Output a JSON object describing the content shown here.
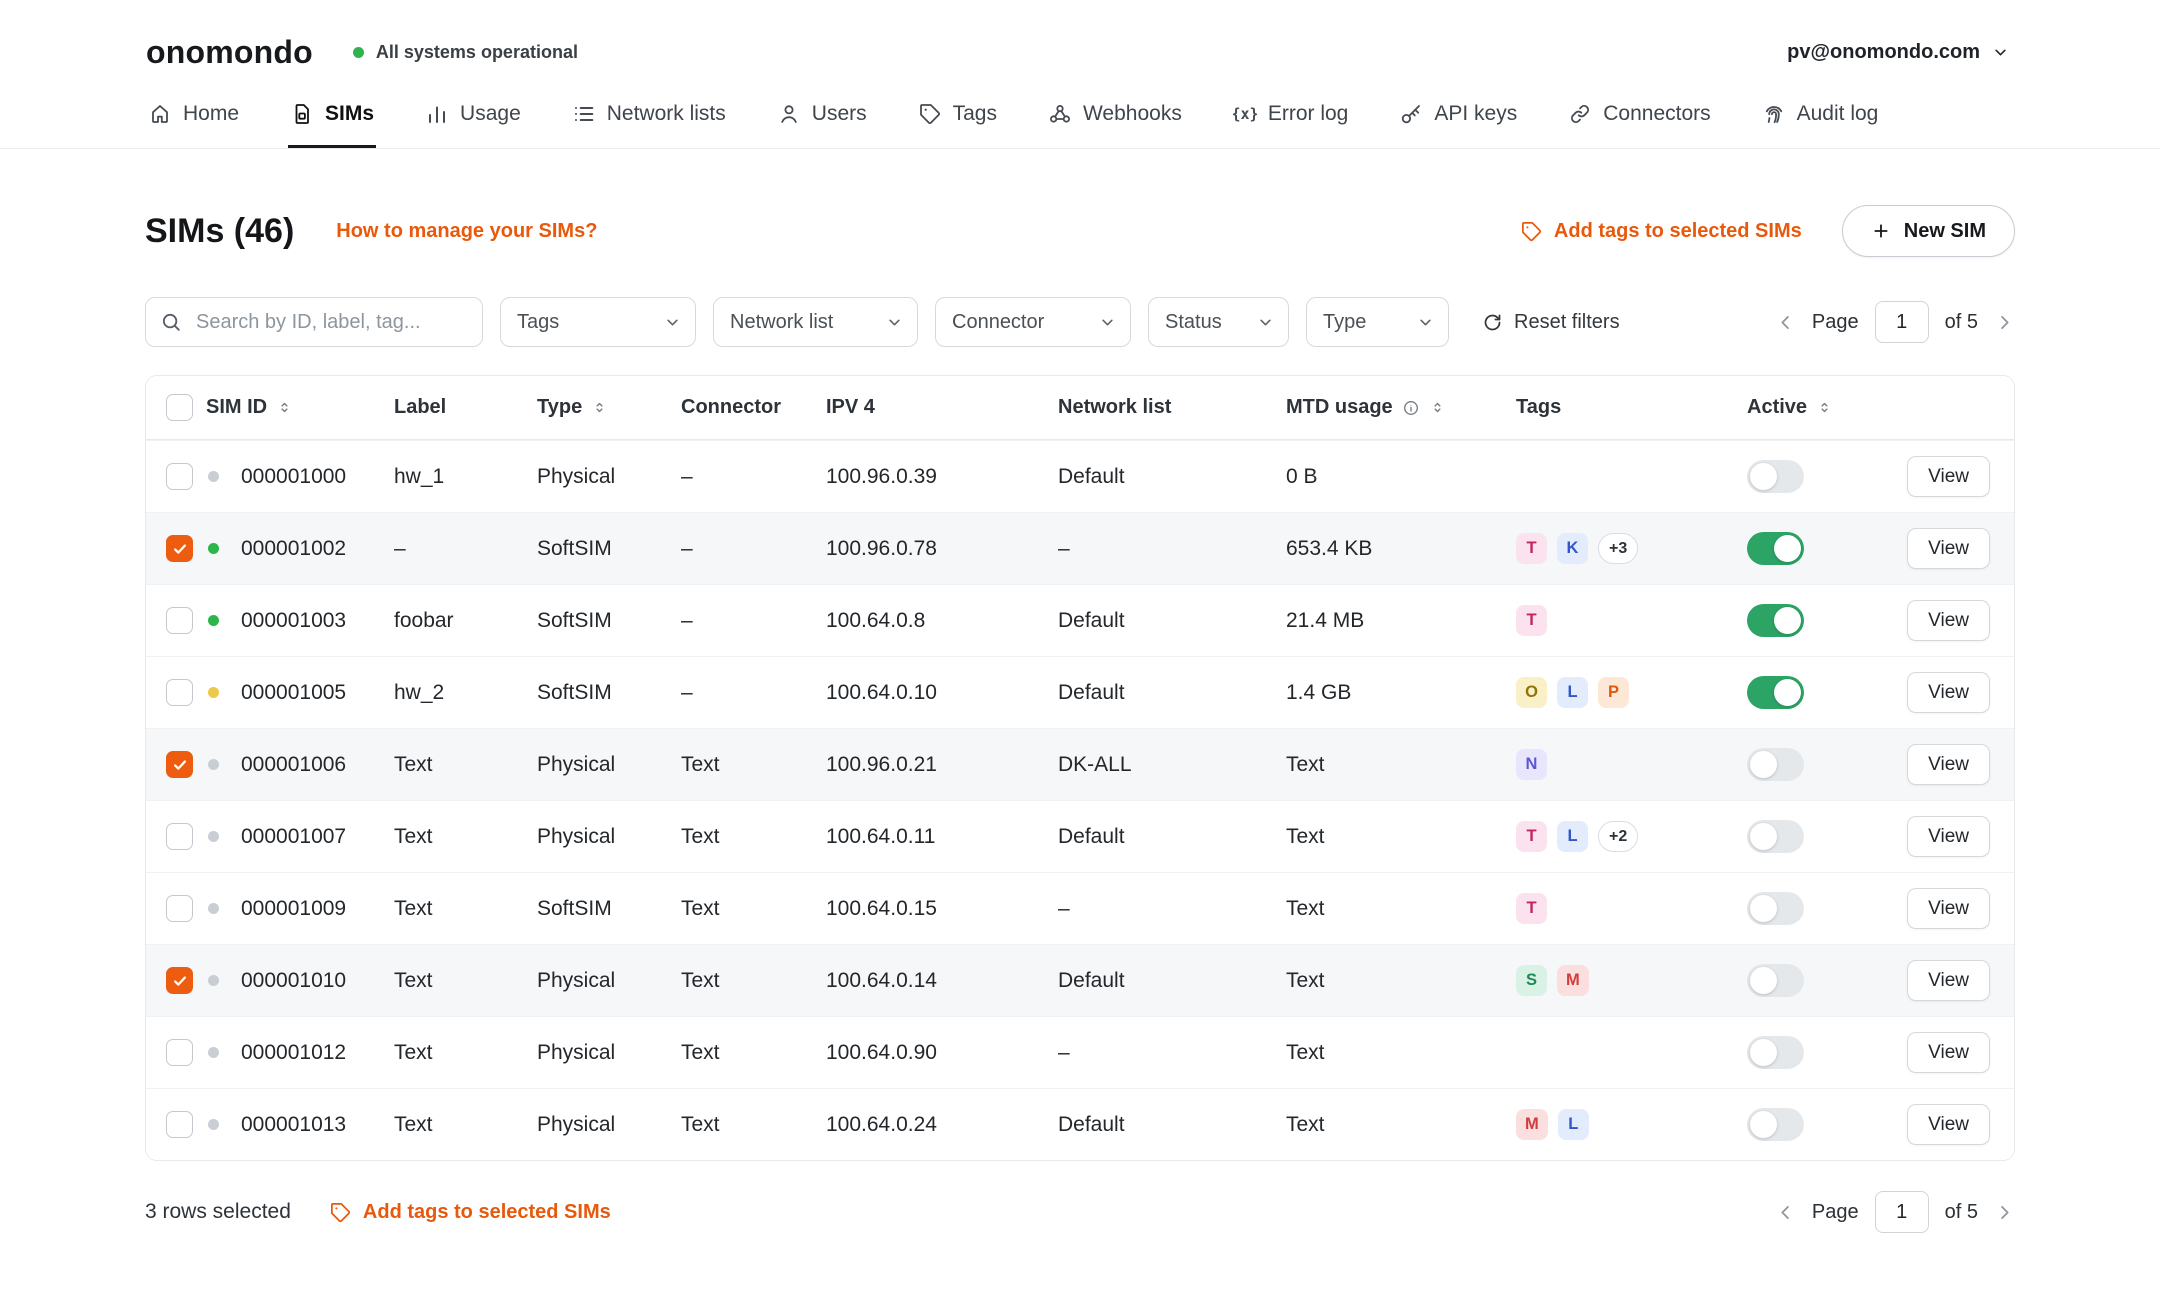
{
  "header": {
    "logo": "onomondo",
    "status": "All systems operational",
    "account": "pv@onomondo.com"
  },
  "nav": [
    {
      "label": "Home",
      "icon": "home",
      "active": false
    },
    {
      "label": "SIMs",
      "icon": "sim",
      "active": true
    },
    {
      "label": "Usage",
      "icon": "usage",
      "active": false
    },
    {
      "label": "Network lists",
      "icon": "network-lists",
      "active": false
    },
    {
      "label": "Users",
      "icon": "users",
      "active": false
    },
    {
      "label": "Tags",
      "icon": "tag",
      "active": false
    },
    {
      "label": "Webhooks",
      "icon": "webhook",
      "active": false
    },
    {
      "label": "Error log",
      "icon": "error-log",
      "active": false
    },
    {
      "label": "API keys",
      "icon": "key",
      "active": false
    },
    {
      "label": "Connectors",
      "icon": "connector",
      "active": false
    },
    {
      "label": "Audit log",
      "icon": "audit",
      "active": false
    }
  ],
  "page": {
    "title": "SIMs (46)",
    "help_link": "How to manage your SIMs?",
    "add_tags_label": "Add tags to selected SIMs",
    "new_sim_label": "New SIM"
  },
  "filters": {
    "search_placeholder": "Search by ID, label, tag...",
    "dropdowns": [
      "Tags",
      "Network list",
      "Connector",
      "Status",
      "Type"
    ],
    "reset_label": "Reset filters"
  },
  "pagination": {
    "page_label": "Page",
    "value": "1",
    "of_label": "of 5"
  },
  "table": {
    "view_label": "View",
    "columns": [
      {
        "label": "SIM ID",
        "sortable": true
      },
      {
        "label": "Label",
        "sortable": false
      },
      {
        "label": "Type",
        "sortable": true
      },
      {
        "label": "Connector",
        "sortable": false
      },
      {
        "label": "IPV 4",
        "sortable": false
      },
      {
        "label": "Network list",
        "sortable": false
      },
      {
        "label": "MTD usage",
        "sortable": true,
        "info": true
      },
      {
        "label": "Tags",
        "sortable": false
      },
      {
        "label": "Active",
        "sortable": true
      }
    ],
    "rows": [
      {
        "checked": false,
        "status": "gray",
        "sim_id": "000001000",
        "label": "hw_1",
        "type": "Physical",
        "connector": "–",
        "ipv4": "100.96.0.39",
        "network_list": "Default",
        "mtd_usage": "0 B",
        "tags": [],
        "active": false
      },
      {
        "checked": true,
        "status": "green",
        "sim_id": "000001002",
        "label": "–",
        "type": "SoftSIM",
        "connector": "–",
        "ipv4": "100.96.0.78",
        "network_list": "–",
        "mtd_usage": "653.4 KB",
        "tags": [
          {
            "text": "T",
            "color": "pink"
          },
          {
            "text": "K",
            "color": "blue"
          },
          {
            "text": "+3",
            "color": "more"
          }
        ],
        "active": true
      },
      {
        "checked": false,
        "status": "green",
        "sim_id": "000001003",
        "label": "foobar",
        "type": "SoftSIM",
        "connector": "–",
        "ipv4": "100.64.0.8",
        "network_list": "Default",
        "mtd_usage": "21.4 MB",
        "tags": [
          {
            "text": "T",
            "color": "pink"
          }
        ],
        "active": true
      },
      {
        "checked": false,
        "status": "yellow",
        "sim_id": "000001005",
        "label": "hw_2",
        "type": "SoftSIM",
        "connector": "–",
        "ipv4": "100.64.0.10",
        "network_list": "Default",
        "mtd_usage": "1.4 GB",
        "tags": [
          {
            "text": "O",
            "color": "yellow"
          },
          {
            "text": "L",
            "color": "blue"
          },
          {
            "text": "P",
            "color": "orange"
          }
        ],
        "active": true
      },
      {
        "checked": true,
        "status": "gray",
        "sim_id": "000001006",
        "label": "Text",
        "type": "Physical",
        "connector": "Text",
        "ipv4": "100.96.0.21",
        "network_list": "DK-ALL",
        "mtd_usage": "Text",
        "tags": [
          {
            "text": "N",
            "color": "indigo"
          }
        ],
        "active": false
      },
      {
        "checked": false,
        "status": "gray",
        "sim_id": "000001007",
        "label": "Text",
        "type": "Physical",
        "connector": "Text",
        "ipv4": "100.64.0.11",
        "network_list": "Default",
        "mtd_usage": "Text",
        "tags": [
          {
            "text": "T",
            "color": "pink"
          },
          {
            "text": "L",
            "color": "blue"
          },
          {
            "text": "+2",
            "color": "more"
          }
        ],
        "active": false
      },
      {
        "checked": false,
        "status": "gray",
        "sim_id": "000001009",
        "label": "Text",
        "type": "SoftSIM",
        "connector": "Text",
        "ipv4": "100.64.0.15",
        "network_list": "–",
        "mtd_usage": "Text",
        "tags": [
          {
            "text": "T",
            "color": "pink"
          }
        ],
        "active": false
      },
      {
        "checked": true,
        "status": "gray",
        "sim_id": "000001010",
        "label": "Text",
        "type": "Physical",
        "connector": "Text",
        "ipv4": "100.64.0.14",
        "network_list": "Default",
        "mtd_usage": "Text",
        "tags": [
          {
            "text": "S",
            "color": "green"
          },
          {
            "text": "M",
            "color": "red"
          }
        ],
        "active": false
      },
      {
        "checked": false,
        "status": "gray",
        "sim_id": "000001012",
        "label": "Text",
        "type": "Physical",
        "connector": "Text",
        "ipv4": "100.64.0.90",
        "network_list": "–",
        "mtd_usage": "Text",
        "tags": [],
        "active": false
      },
      {
        "checked": false,
        "status": "gray",
        "sim_id": "000001013",
        "label": "Text",
        "type": "Physical",
        "connector": "Text",
        "ipv4": "100.64.0.24",
        "network_list": "Default",
        "mtd_usage": "Text",
        "tags": [
          {
            "text": "M",
            "color": "red"
          },
          {
            "text": "L",
            "color": "blue"
          }
        ],
        "active": false
      }
    ]
  },
  "footer": {
    "selected_text": "3 rows selected",
    "add_tags_label": "Add tags to selected SIMs"
  }
}
